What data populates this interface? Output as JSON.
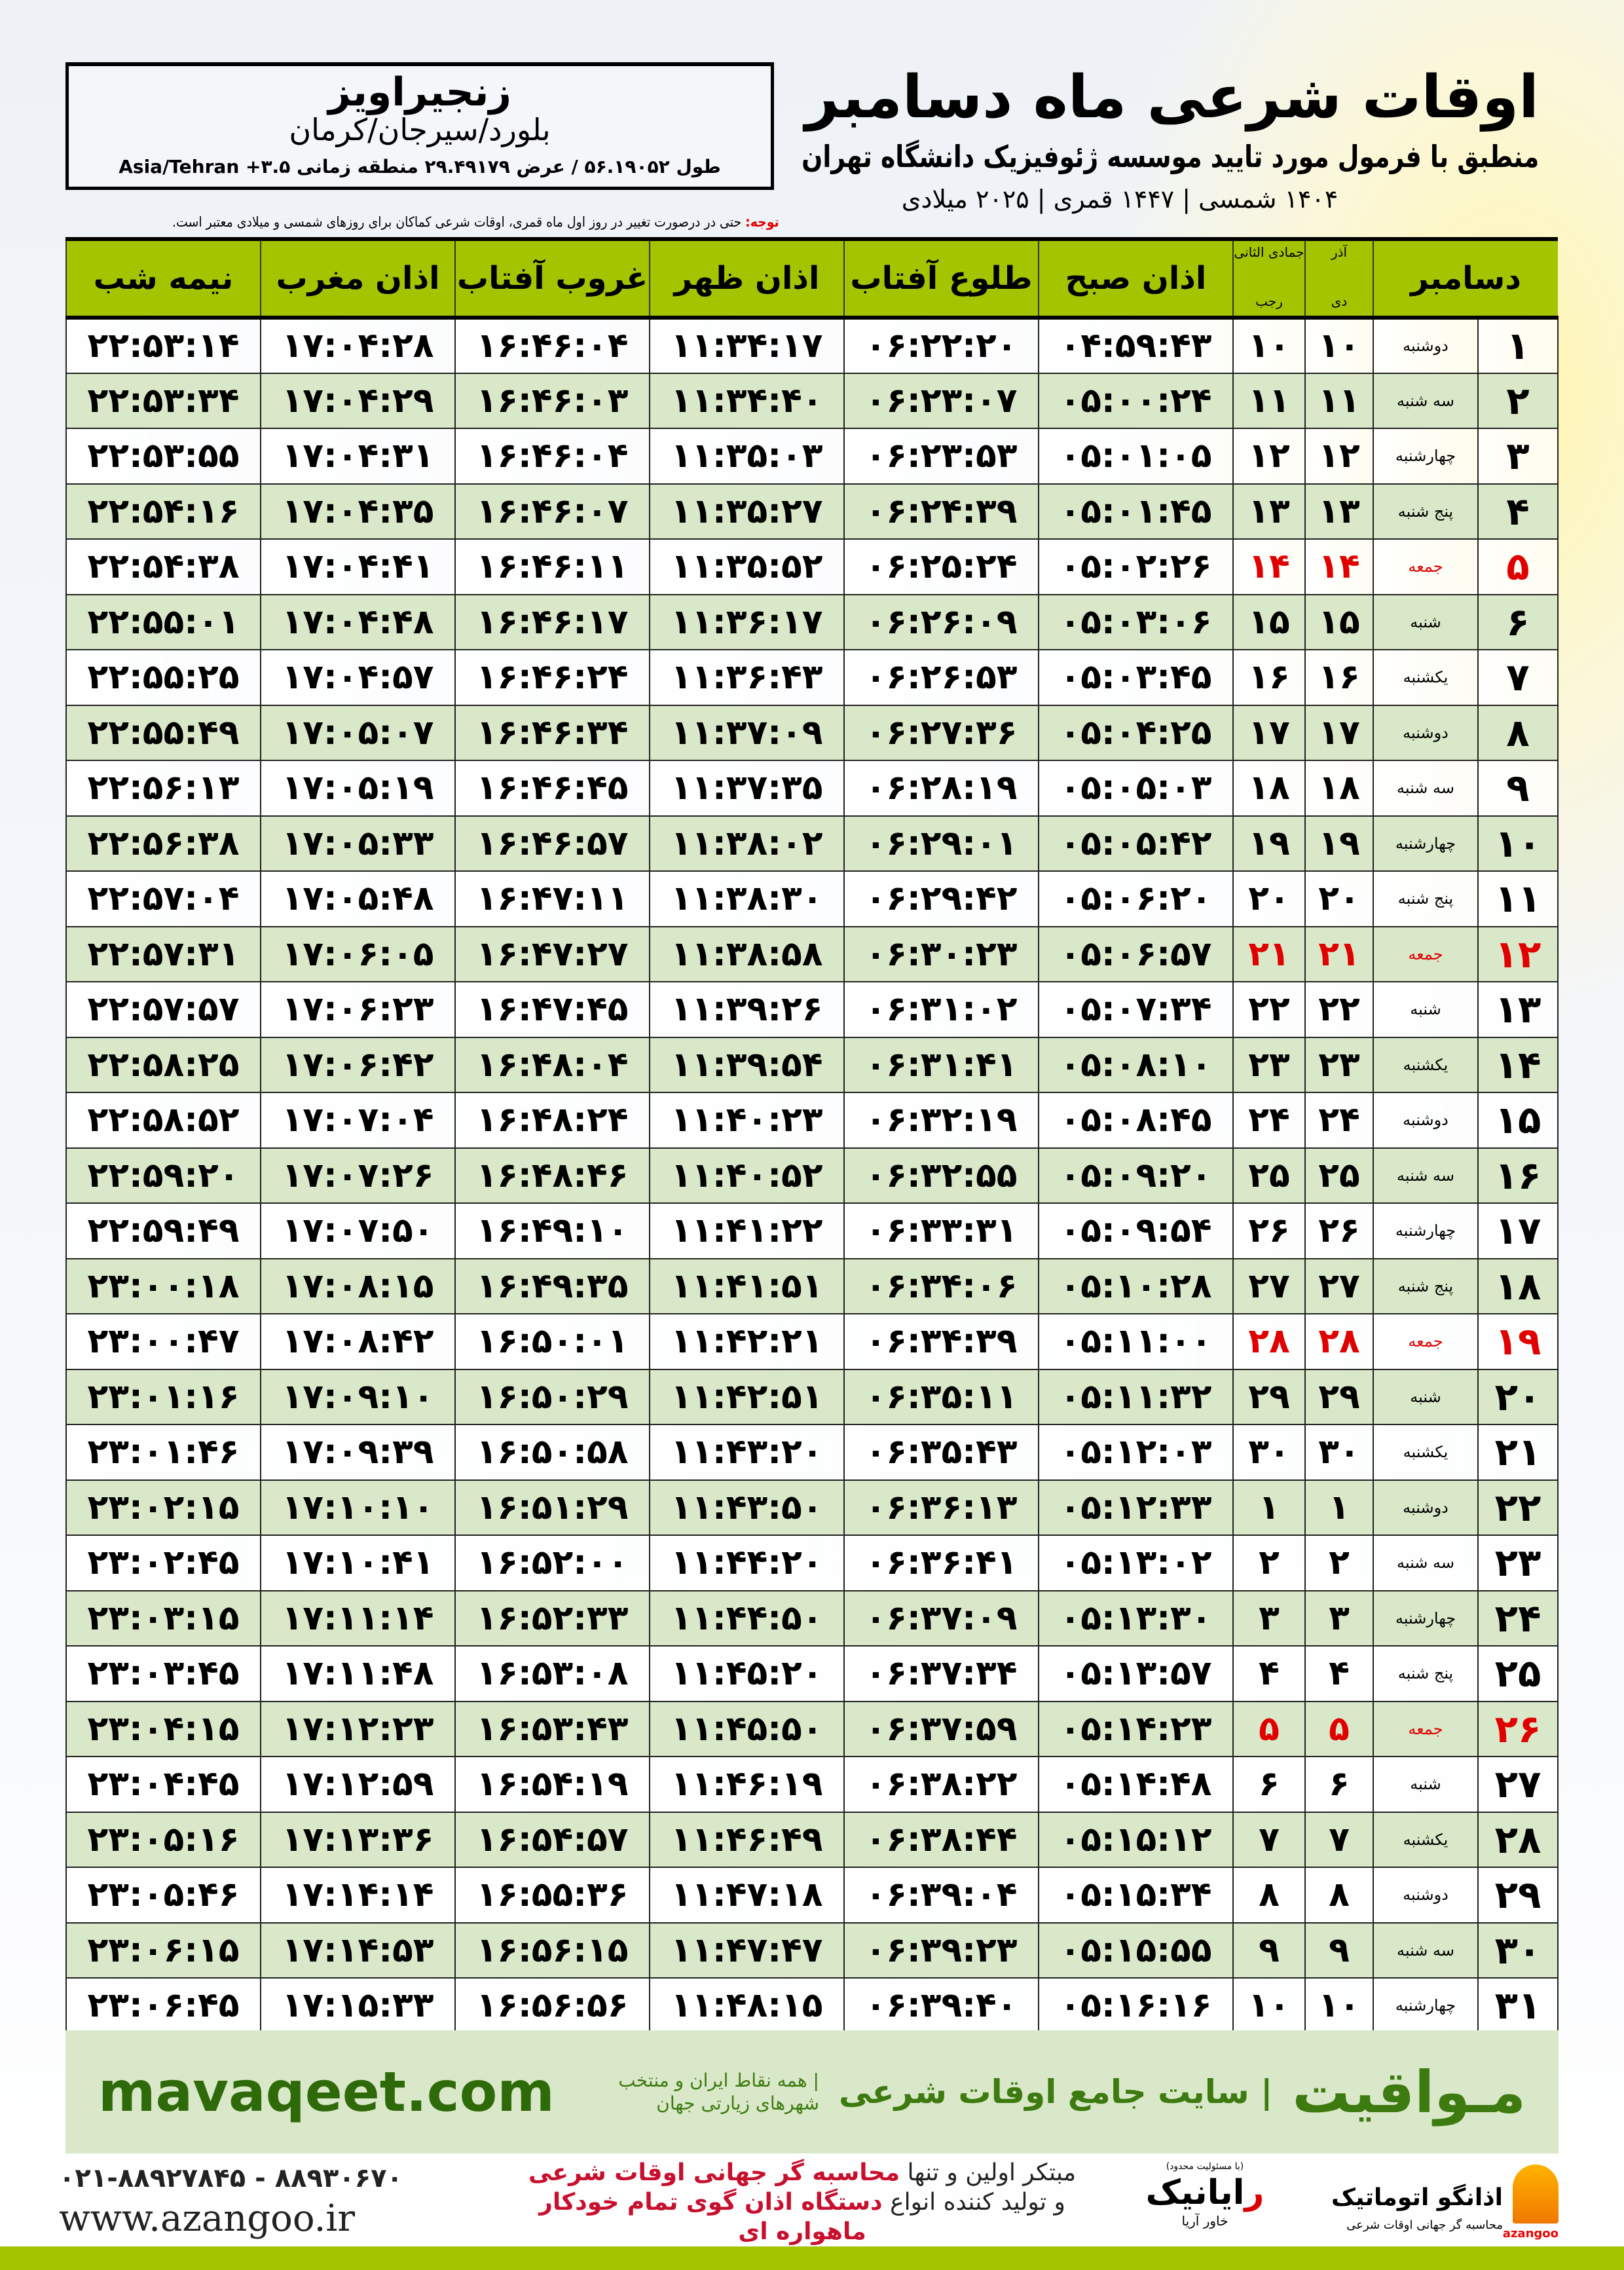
{
  "header": {
    "title": "اوقات شرعی ماه دسامبر",
    "subtitle": "منطبق با فرمول مورد تایید موسسه ژئوفیزیک دانشگاه تهران",
    "year_line": "۱۴۰۴ شمسی | ۱۴۴۷ قمری | ۲۰۲۵ میلادی"
  },
  "location": {
    "city": "زنجیراویز",
    "region": "بلورد/سیرجان/کرمان",
    "coords": "طول ۵۶.۱۹۰۵۲ / عرض ۲۹.۴۹۱۷۹ منطقه زمانی ۳.۵+ Asia/Tehran"
  },
  "note": {
    "label": "توجه:",
    "text": " حتی در درصورت تغییر در روز اول ماه قمری، اوقات شرعی کماکان برای روزهای شمسی و میلادی معتبر است."
  },
  "table": {
    "headers": {
      "month": "دسامبر",
      "solar_top": "آذر",
      "solar_bottom": "دی",
      "lunar_top": "جمادی الثانی",
      "lunar_bottom": "رجب",
      "fajr": "اذان صبح",
      "sunrise": "طلوع آفتاب",
      "dhuhr": "اذان ظهر",
      "sunset": "غروب آفتاب",
      "maghrib": "اذان مغرب",
      "midnight": "نیمه شب"
    },
    "friday_color": "#e00000",
    "rows": [
      [
        "۱",
        "دوشنبه",
        "۱۰",
        "۱۰",
        "۰۴:۵۹:۴۳",
        "۰۶:۲۲:۲۰",
        "۱۱:۳۴:۱۷",
        "۱۶:۴۶:۰۴",
        "۱۷:۰۴:۲۸",
        "۲۲:۵۳:۱۴"
      ],
      [
        "۲",
        "سه شنبه",
        "۱۱",
        "۱۱",
        "۰۵:۰۰:۲۴",
        "۰۶:۲۳:۰۷",
        "۱۱:۳۴:۴۰",
        "۱۶:۴۶:۰۳",
        "۱۷:۰۴:۲۹",
        "۲۲:۵۳:۳۴"
      ],
      [
        "۳",
        "چهارشنبه",
        "۱۲",
        "۱۲",
        "۰۵:۰۱:۰۵",
        "۰۶:۲۳:۵۳",
        "۱۱:۳۵:۰۳",
        "۱۶:۴۶:۰۴",
        "۱۷:۰۴:۳۱",
        "۲۲:۵۳:۵۵"
      ],
      [
        "۴",
        "پنج شنبه",
        "۱۳",
        "۱۳",
        "۰۵:۰۱:۴۵",
        "۰۶:۲۴:۳۹",
        "۱۱:۳۵:۲۷",
        "۱۶:۴۶:۰۷",
        "۱۷:۰۴:۳۵",
        "۲۲:۵۴:۱۶"
      ],
      [
        "۵",
        "جمعه",
        "۱۴",
        "۱۴",
        "۰۵:۰۲:۲۶",
        "۰۶:۲۵:۲۴",
        "۱۱:۳۵:۵۲",
        "۱۶:۴۶:۱۱",
        "۱۷:۰۴:۴۱",
        "۲۲:۵۴:۳۸"
      ],
      [
        "۶",
        "شنبه",
        "۱۵",
        "۱۵",
        "۰۵:۰۳:۰۶",
        "۰۶:۲۶:۰۹",
        "۱۱:۳۶:۱۷",
        "۱۶:۴۶:۱۷",
        "۱۷:۰۴:۴۸",
        "۲۲:۵۵:۰۱"
      ],
      [
        "۷",
        "یکشنبه",
        "۱۶",
        "۱۶",
        "۰۵:۰۳:۴۵",
        "۰۶:۲۶:۵۳",
        "۱۱:۳۶:۴۳",
        "۱۶:۴۶:۲۴",
        "۱۷:۰۴:۵۷",
        "۲۲:۵۵:۲۵"
      ],
      [
        "۸",
        "دوشنبه",
        "۱۷",
        "۱۷",
        "۰۵:۰۴:۲۵",
        "۰۶:۲۷:۳۶",
        "۱۱:۳۷:۰۹",
        "۱۶:۴۶:۳۴",
        "۱۷:۰۵:۰۷",
        "۲۲:۵۵:۴۹"
      ],
      [
        "۹",
        "سه شنبه",
        "۱۸",
        "۱۸",
        "۰۵:۰۵:۰۳",
        "۰۶:۲۸:۱۹",
        "۱۱:۳۷:۳۵",
        "۱۶:۴۶:۴۵",
        "۱۷:۰۵:۱۹",
        "۲۲:۵۶:۱۳"
      ],
      [
        "۱۰",
        "چهارشنبه",
        "۱۹",
        "۱۹",
        "۰۵:۰۵:۴۲",
        "۰۶:۲۹:۰۱",
        "۱۱:۳۸:۰۲",
        "۱۶:۴۶:۵۷",
        "۱۷:۰۵:۳۳",
        "۲۲:۵۶:۳۸"
      ],
      [
        "۱۱",
        "پنج شنبه",
        "۲۰",
        "۲۰",
        "۰۵:۰۶:۲۰",
        "۰۶:۲۹:۴۲",
        "۱۱:۳۸:۳۰",
        "۱۶:۴۷:۱۱",
        "۱۷:۰۵:۴۸",
        "۲۲:۵۷:۰۴"
      ],
      [
        "۱۲",
        "جمعه",
        "۲۱",
        "۲۱",
        "۰۵:۰۶:۵۷",
        "۰۶:۳۰:۲۳",
        "۱۱:۳۸:۵۸",
        "۱۶:۴۷:۲۷",
        "۱۷:۰۶:۰۵",
        "۲۲:۵۷:۳۱"
      ],
      [
        "۱۳",
        "شنبه",
        "۲۲",
        "۲۲",
        "۰۵:۰۷:۳۴",
        "۰۶:۳۱:۰۲",
        "۱۱:۳۹:۲۶",
        "۱۶:۴۷:۴۵",
        "۱۷:۰۶:۲۳",
        "۲۲:۵۷:۵۷"
      ],
      [
        "۱۴",
        "یکشنبه",
        "۲۳",
        "۲۳",
        "۰۵:۰۸:۱۰",
        "۰۶:۳۱:۴۱",
        "۱۱:۳۹:۵۴",
        "۱۶:۴۸:۰۴",
        "۱۷:۰۶:۴۲",
        "۲۲:۵۸:۲۵"
      ],
      [
        "۱۵",
        "دوشنبه",
        "۲۴",
        "۲۴",
        "۰۵:۰۸:۴۵",
        "۰۶:۳۲:۱۹",
        "۱۱:۴۰:۲۳",
        "۱۶:۴۸:۲۴",
        "۱۷:۰۷:۰۴",
        "۲۲:۵۸:۵۲"
      ],
      [
        "۱۶",
        "سه شنبه",
        "۲۵",
        "۲۵",
        "۰۵:۰۹:۲۰",
        "۰۶:۳۲:۵۵",
        "۱۱:۴۰:۵۲",
        "۱۶:۴۸:۴۶",
        "۱۷:۰۷:۲۶",
        "۲۲:۵۹:۲۰"
      ],
      [
        "۱۷",
        "چهارشنبه",
        "۲۶",
        "۲۶",
        "۰۵:۰۹:۵۴",
        "۰۶:۳۳:۳۱",
        "۱۱:۴۱:۲۲",
        "۱۶:۴۹:۱۰",
        "۱۷:۰۷:۵۰",
        "۲۲:۵۹:۴۹"
      ],
      [
        "۱۸",
        "پنج شنبه",
        "۲۷",
        "۲۷",
        "۰۵:۱۰:۲۸",
        "۰۶:۳۴:۰۶",
        "۱۱:۴۱:۵۱",
        "۱۶:۴۹:۳۵",
        "۱۷:۰۸:۱۵",
        "۲۳:۰۰:۱۸"
      ],
      [
        "۱۹",
        "جمعه",
        "۲۸",
        "۲۸",
        "۰۵:۱۱:۰۰",
        "۰۶:۳۴:۳۹",
        "۱۱:۴۲:۲۱",
        "۱۶:۵۰:۰۱",
        "۱۷:۰۸:۴۲",
        "۲۳:۰۰:۴۷"
      ],
      [
        "۲۰",
        "شنبه",
        "۲۹",
        "۲۹",
        "۰۵:۱۱:۳۲",
        "۰۶:۳۵:۱۱",
        "۱۱:۴۲:۵۱",
        "۱۶:۵۰:۲۹",
        "۱۷:۰۹:۱۰",
        "۲۳:۰۱:۱۶"
      ],
      [
        "۲۱",
        "یکشنبه",
        "۳۰",
        "۳۰",
        "۰۵:۱۲:۰۳",
        "۰۶:۳۵:۴۳",
        "۱۱:۴۳:۲۰",
        "۱۶:۵۰:۵۸",
        "۱۷:۰۹:۳۹",
        "۲۳:۰۱:۴۶"
      ],
      [
        "۲۲",
        "دوشنبه",
        "۱",
        "۱",
        "۰۵:۱۲:۳۳",
        "۰۶:۳۶:۱۳",
        "۱۱:۴۳:۵۰",
        "۱۶:۵۱:۲۹",
        "۱۷:۱۰:۱۰",
        "۲۳:۰۲:۱۵"
      ],
      [
        "۲۳",
        "سه شنبه",
        "۲",
        "۲",
        "۰۵:۱۳:۰۲",
        "۰۶:۳۶:۴۱",
        "۱۱:۴۴:۲۰",
        "۱۶:۵۲:۰۰",
        "۱۷:۱۰:۴۱",
        "۲۳:۰۲:۴۵"
      ],
      [
        "۲۴",
        "چهارشنبه",
        "۳",
        "۳",
        "۰۵:۱۳:۳۰",
        "۰۶:۳۷:۰۹",
        "۱۱:۴۴:۵۰",
        "۱۶:۵۲:۳۳",
        "۱۷:۱۱:۱۴",
        "۲۳:۰۳:۱۵"
      ],
      [
        "۲۵",
        "پنج شنبه",
        "۴",
        "۴",
        "۰۵:۱۳:۵۷",
        "۰۶:۳۷:۳۴",
        "۱۱:۴۵:۲۰",
        "۱۶:۵۳:۰۸",
        "۱۷:۱۱:۴۸",
        "۲۳:۰۳:۴۵"
      ],
      [
        "۲۶",
        "جمعه",
        "۵",
        "۵",
        "۰۵:۱۴:۲۳",
        "۰۶:۳۷:۵۹",
        "۱۱:۴۵:۵۰",
        "۱۶:۵۳:۴۳",
        "۱۷:۱۲:۲۳",
        "۲۳:۰۴:۱۵"
      ],
      [
        "۲۷",
        "شنبه",
        "۶",
        "۶",
        "۰۵:۱۴:۴۸",
        "۰۶:۳۸:۲۲",
        "۱۱:۴۶:۱۹",
        "۱۶:۵۴:۱۹",
        "۱۷:۱۲:۵۹",
        "۲۳:۰۴:۴۵"
      ],
      [
        "۲۸",
        "یکشنبه",
        "۷",
        "۷",
        "۰۵:۱۵:۱۲",
        "۰۶:۳۸:۴۴",
        "۱۱:۴۶:۴۹",
        "۱۶:۵۴:۵۷",
        "۱۷:۱۳:۳۶",
        "۲۳:۰۵:۱۶"
      ],
      [
        "۲۹",
        "دوشنبه",
        "۸",
        "۸",
        "۰۵:۱۵:۳۴",
        "۰۶:۳۹:۰۴",
        "۱۱:۴۷:۱۸",
        "۱۶:۵۵:۳۶",
        "۱۷:۱۴:۱۴",
        "۲۳:۰۵:۴۶"
      ],
      [
        "۳۰",
        "سه شنبه",
        "۹",
        "۹",
        "۰۵:۱۵:۵۵",
        "۰۶:۳۹:۲۳",
        "۱۱:۴۷:۴۷",
        "۱۶:۵۶:۱۵",
        "۱۷:۱۴:۵۳",
        "۲۳:۰۶:۱۵"
      ],
      [
        "۳۱",
        "چهارشنبه",
        "۱۰",
        "۱۰",
        "۰۵:۱۶:۱۶",
        "۰۶:۳۹:۴۰",
        "۱۱:۴۸:۱۵",
        "۱۶:۵۶:۵۶",
        "۱۷:۱۵:۳۳",
        "۲۳:۰۶:۴۵"
      ]
    ]
  },
  "banner": {
    "brand": "مـواقیت",
    "tagline": "| سایت جامع اوقات شرعی",
    "tagline2": "| همه نقاط ایران و منتخب شهرهای زیارتی جهان",
    "url": "mavaqeet.com",
    "color": "#3d7a0f"
  },
  "footer": {
    "phone": "۰۲۱-۸۸۹۲۷۸۴۵ - ۸۸۹۳۰۶۷۰",
    "website": "www.azangoo.ir",
    "slogan1_a": "مبتکر اولین و تنها ",
    "slogan1_b": "محاسبه گر جهانی اوقات شرعی",
    "slogan2_a": "و تولید کننده انواع ",
    "slogan2_b": "دستگاه اذان گوی تمام خودکار ماهواره ای",
    "logo1_small": "(با مسئولیت محدود)",
    "logo1_name_red": "ر",
    "logo1_name": "ایانیک",
    "logo1_sub": "خاور آریا",
    "logo2_name": "اذانگو اتوماتیک",
    "logo2_sub": "محاسبه گر جهانی اوقات شرعی",
    "logo2_latin": "azangoo",
    "accent": "#a5c400"
  }
}
